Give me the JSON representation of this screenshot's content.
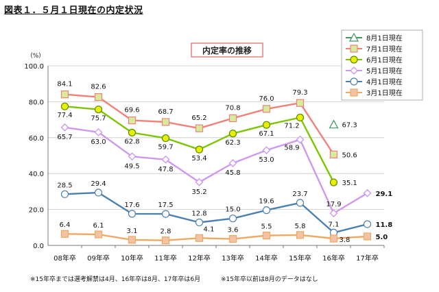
{
  "figure_title": "図表１．５月１日現在の内定状況",
  "notes": [
    "※15年卒までは選考解禁は4月、16年卒は8月、17年卒は6月",
    "※15年卒以前は8月のデータはなし"
  ],
  "chart_data": {
    "type": "line",
    "title": "内定率の推移",
    "ylabel": "（%）",
    "xlabel": "",
    "categories": [
      "08年卒",
      "09年卒",
      "10年卒",
      "11年卒",
      "12年卒",
      "13年卒",
      "14年卒",
      "15年卒",
      "16年卒",
      "17年卒"
    ],
    "ylim": [
      0,
      100
    ],
    "yticks": [
      0,
      20,
      40,
      60,
      80,
      100
    ],
    "ytick_labels": [
      "0.0",
      "20.0",
      "40.0",
      "60.0",
      "80.0",
      "100.0"
    ],
    "grid": true,
    "legend_position": "top-right",
    "series": [
      {
        "name": "8月1日現在",
        "color": "#3a9a5a",
        "fill": "#ffffff",
        "marker": "triangle",
        "values": [
          null,
          null,
          null,
          null,
          null,
          null,
          null,
          null,
          67.3,
          null
        ],
        "labels": [
          "",
          "",
          "",
          "",
          "",
          "",
          "",
          "",
          "67.3",
          ""
        ]
      },
      {
        "name": "7月1日現在",
        "color": "#f08078",
        "fill": "#d6ec9c",
        "marker": "square",
        "values": [
          84.1,
          82.6,
          69.6,
          68.7,
          65.2,
          70.8,
          76.0,
          79.3,
          50.6,
          null
        ],
        "labels": [
          "84.1",
          "82.6",
          "69.6",
          "68.7",
          "65.2",
          "70.8",
          "76.0",
          "79.3",
          "50.6",
          ""
        ]
      },
      {
        "name": "6月1日現在",
        "color": "#7cc400",
        "fill": "#e8f000",
        "marker": "circle",
        "values": [
          77.4,
          75.7,
          62.8,
          59.7,
          53.4,
          62.3,
          67.1,
          71.2,
          35.1,
          null
        ],
        "labels": [
          "77.4",
          "75.7",
          "62.8",
          "59.7",
          "53.4",
          "62.3",
          "67.1",
          "71.2",
          "35.1",
          ""
        ]
      },
      {
        "name": "5月1日現在",
        "color": "#cc99ee",
        "fill": "#ffffff",
        "marker": "diamond",
        "values": [
          65.7,
          63.0,
          49.5,
          47.8,
          35.2,
          45.8,
          53.0,
          58.9,
          17.9,
          29.1
        ],
        "labels": [
          "65.7",
          "63.0",
          "49.5",
          "47.8",
          "35.2",
          "45.8",
          "53.0",
          "58.9",
          "17.9",
          "29.1"
        ]
      },
      {
        "name": "4月1日現在",
        "color": "#4a7fb0",
        "fill": "#ffffff",
        "marker": "circle",
        "values": [
          28.5,
          29.4,
          17.6,
          17.5,
          12.8,
          15.0,
          19.6,
          23.7,
          7.1,
          11.8
        ],
        "labels": [
          "28.5",
          "29.4",
          "17.6",
          "17.5",
          "12.8",
          "15.0",
          "19.6",
          "23.7",
          "7.1",
          "11.8"
        ]
      },
      {
        "name": "3月1日現在",
        "color": "#f0a860",
        "fill": "#f3c3a6",
        "marker": "square",
        "values": [
          6.4,
          6.1,
          3.1,
          2.8,
          4.1,
          3.6,
          5.5,
          5.8,
          3.8,
          5.0
        ],
        "labels": [
          "6.4",
          "6.1",
          "3.1",
          "2.8",
          "4.1",
          "3.6",
          "5.5",
          "5.8",
          "3.8",
          "5.0"
        ]
      }
    ]
  }
}
